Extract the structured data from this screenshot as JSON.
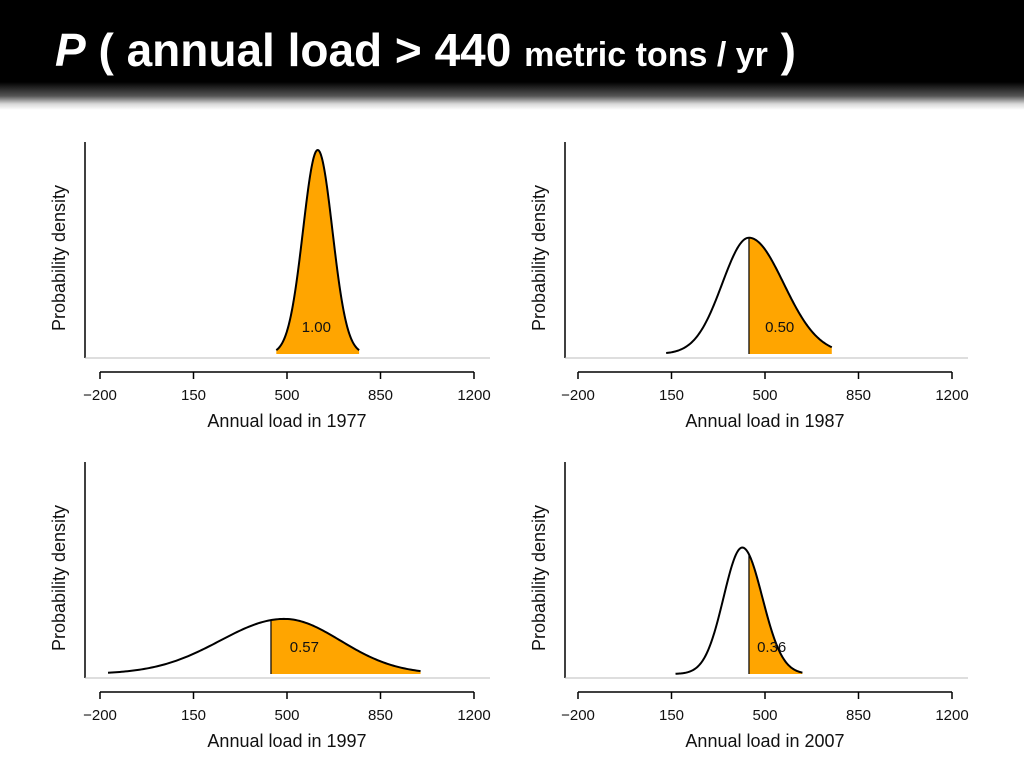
{
  "title": {
    "p": "P",
    "open": " ( annual load > 440 ",
    "unit": "metric tons / yr",
    "close": " )"
  },
  "chart_data": [
    {
      "type": "area",
      "title": "",
      "xlabel": "Annual load in 1977",
      "ylabel": "Probability density",
      "xlim": [
        -200,
        1200
      ],
      "xticks": [
        -200,
        150,
        500,
        850,
        1200
      ],
      "xtick_labels": [
        "−200",
        "150",
        "500",
        "850",
        "1200"
      ],
      "threshold": 440,
      "distribution": {
        "mean": 615,
        "sd": 55,
        "min": 460,
        "max": 770,
        "peak": 1.0
      },
      "shaded_from": 460,
      "probability": "1.00",
      "probability_x": 610
    },
    {
      "type": "area",
      "title": "",
      "xlabel": "Annual load in 1987",
      "ylabel": "Probability density",
      "xlim": [
        -200,
        1200
      ],
      "xticks": [
        -200,
        150,
        500,
        850,
        1200
      ],
      "xtick_labels": [
        "−200",
        "150",
        "500",
        "850",
        "1200"
      ],
      "threshold": 440,
      "distribution": {
        "mean": 440,
        "sd_left": 100,
        "sd_right": 130,
        "min": 130,
        "max": 750,
        "peak": 0.57
      },
      "shaded_from": 440,
      "probability": "0.50",
      "probability_x": 555
    },
    {
      "type": "area",
      "title": "",
      "xlabel": "Annual load in 1997",
      "ylabel": "Probability density",
      "xlim": [
        -200,
        1200
      ],
      "xticks": [
        -200,
        150,
        500,
        850,
        1200
      ],
      "xtick_labels": [
        "−200",
        "150",
        "500",
        "850",
        "1200"
      ],
      "threshold": 440,
      "distribution": {
        "mean": 490,
        "sd_left": 240,
        "sd_right": 210,
        "min": -170,
        "max": 1000,
        "peak": 0.27
      },
      "shaded_from": 440,
      "probability": "0.57",
      "probability_x": 565
    },
    {
      "type": "area",
      "title": "",
      "xlabel": "Annual load in 2007",
      "ylabel": "Probability density",
      "xlim": [
        -200,
        1200
      ],
      "xticks": [
        -200,
        150,
        500,
        850,
        1200
      ],
      "xtick_labels": [
        "−200",
        "150",
        "500",
        "850",
        "1200"
      ],
      "threshold": 440,
      "distribution": {
        "mean": 415,
        "sd_left": 70,
        "sd_right": 75,
        "min": 165,
        "max": 640,
        "peak": 0.62
      },
      "shaded_from": 440,
      "probability": "0.36",
      "probability_x": 525
    }
  ],
  "colors": {
    "fill": "#ffa500",
    "curve": "#000000"
  }
}
